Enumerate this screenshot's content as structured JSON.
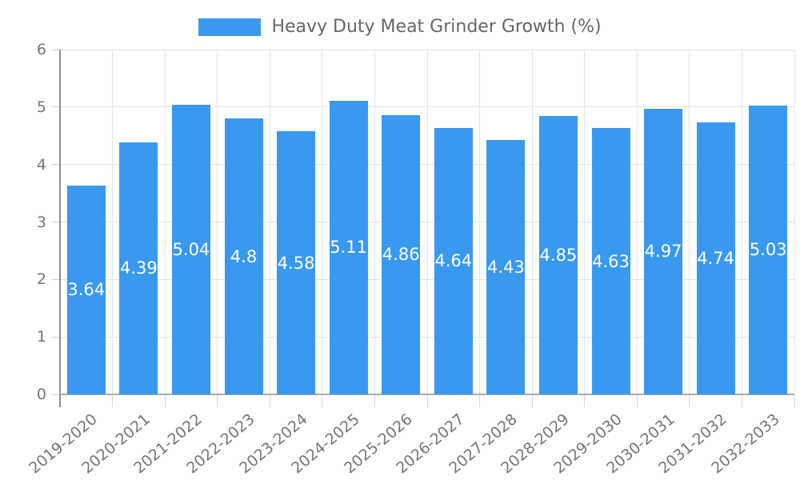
{
  "chart_data": {
    "type": "bar",
    "series_label": "Heavy Duty Meat Grinder Growth (%)",
    "categories": [
      "2019-2020",
      "2020-2021",
      "2021-2022",
      "2022-2023",
      "2023-2024",
      "2024-2025",
      "2025-2026",
      "2026-2027",
      "2027-2028",
      "2028-2029",
      "2029-2030",
      "2030-2031",
      "2031-2032",
      "2032-2033"
    ],
    "values": [
      3.64,
      4.39,
      5.04,
      4.8,
      4.58,
      5.11,
      4.86,
      4.64,
      4.43,
      4.85,
      4.63,
      4.97,
      4.74,
      5.03
    ],
    "xlabel": "",
    "ylabel": "",
    "ylim": [
      0,
      6
    ],
    "yticks": [
      0,
      1,
      2,
      3,
      4,
      5,
      6
    ],
    "grid": true,
    "legend_position": "top",
    "bar_color": "#3999ee",
    "value_label_color": "#ffffff",
    "grid_color": "#e3e3e3",
    "axis_color": "#8f8f8f",
    "tick_text_color": "#757575",
    "legend_text_color": "#666666"
  }
}
